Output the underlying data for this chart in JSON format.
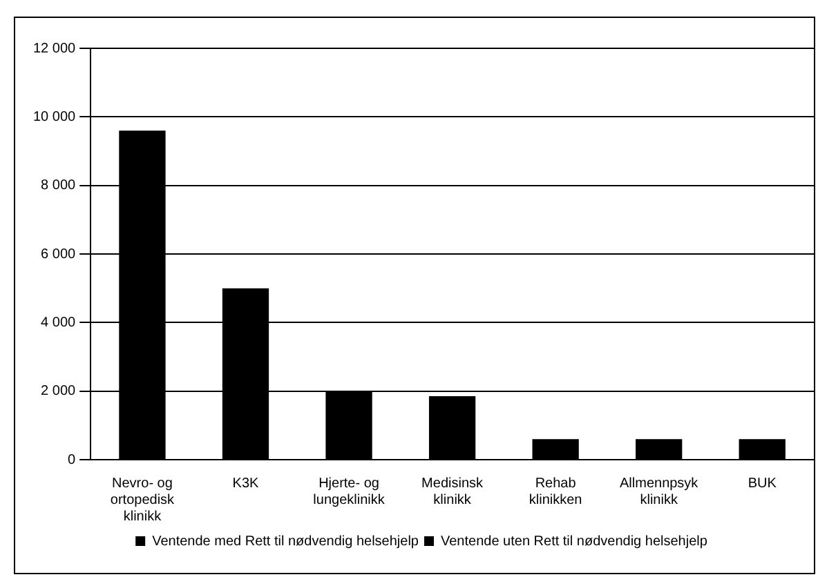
{
  "chart_data": {
    "type": "bar",
    "stacked": true,
    "categories": [
      "Nevro- og ortopedisk klinikk",
      "K3K",
      "Hjerte- og lungeklinikk",
      "Medisinsk klinikk",
      "Rehab klinikken",
      "Allmennpsyk klinikk",
      "BUK"
    ],
    "series": [
      {
        "name": "Ventende med Rett til nødvendig helsehjelp",
        "color": "#000000",
        "values": [
          9600,
          5000,
          2000,
          1850,
          600,
          600,
          600
        ]
      },
      {
        "name": "Ventende uten Rett til nødvendig helsehjelp",
        "color": "#000000",
        "values": [
          null,
          null,
          null,
          null,
          null,
          null,
          null
        ]
      }
    ],
    "ylim": [
      0,
      12000
    ],
    "yticks": [
      {
        "value": 0,
        "label": "0"
      },
      {
        "value": 2000,
        "label": "2 000"
      },
      {
        "value": 4000,
        "label": "4 000"
      },
      {
        "value": 6000,
        "label": "6 000"
      },
      {
        "value": 8000,
        "label": "8 000"
      },
      {
        "value": 10000,
        "label": "10 000"
      },
      {
        "value": 12000,
        "label": "12 000"
      }
    ],
    "grid": "y",
    "legend": "bottom"
  }
}
